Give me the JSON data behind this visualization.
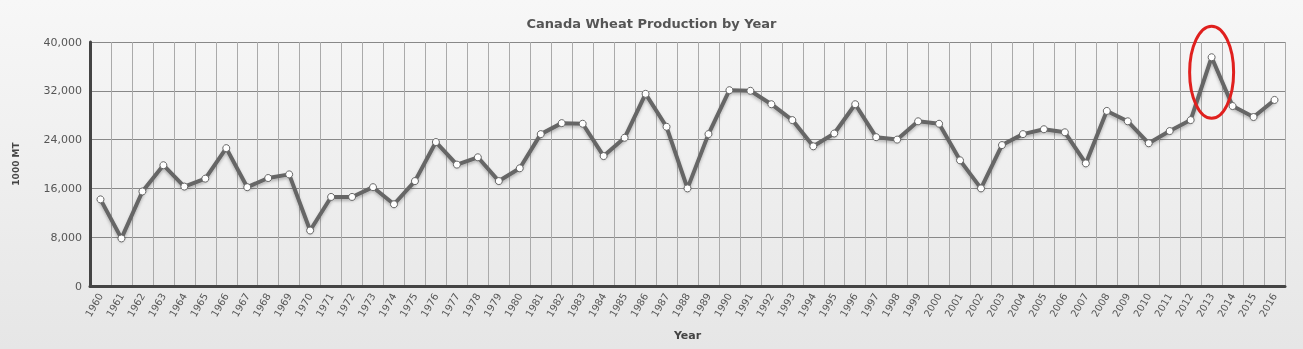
{
  "chart_data": {
    "type": "line",
    "title": "Canada Wheat Production by Year",
    "xlabel": "Year",
    "ylabel": "1000 MT",
    "categories": [
      "1960",
      "1961",
      "1962",
      "1963",
      "1964",
      "1965",
      "1966",
      "1967",
      "1968",
      "1969",
      "1970",
      "1971",
      "1972",
      "1973",
      "1974",
      "1975",
      "1976",
      "1977",
      "1978",
      "1979",
      "1980",
      "1981",
      "1982",
      "1983",
      "1984",
      "1985",
      "1986",
      "1987",
      "1988",
      "1989",
      "1990",
      "1991",
      "1992",
      "1993",
      "1994",
      "1995",
      "1996",
      "1997",
      "1998",
      "1999",
      "2000",
      "2001",
      "2002",
      "2003",
      "2004",
      "2005",
      "2006",
      "2007",
      "2008",
      "2009",
      "2010",
      "2011",
      "2012",
      "2013",
      "2014",
      "2015",
      "2016"
    ],
    "series": [
      {
        "color": "#666666",
        "values": [
          14200,
          7800,
          15500,
          19800,
          16300,
          17600,
          22600,
          16200,
          17700,
          18300,
          9100,
          14600,
          14600,
          16200,
          13400,
          17200,
          23600,
          19900,
          21100,
          17200,
          19300,
          24900,
          26700,
          26600,
          21300,
          24300,
          31500,
          26100,
          16000,
          24900,
          32100,
          32000,
          29800,
          27200,
          22900,
          25000,
          29800,
          24400,
          24000,
          27000,
          26600,
          20600,
          16000,
          23100,
          24900,
          25700,
          25200,
          20100,
          28700,
          27000,
          23400,
          25400,
          27200,
          37500,
          29500,
          27700,
          30500
        ]
      }
    ],
    "ylim": [
      0,
      40000
    ],
    "yticks": [
      {
        "value": 0,
        "label": "0"
      },
      {
        "value": 8000,
        "label": "8,000"
      },
      {
        "value": 16000,
        "label": "16,000"
      },
      {
        "value": 24000,
        "label": "24,000"
      },
      {
        "value": 32000,
        "label": "32,000"
      },
      {
        "value": 40000,
        "label": "40,000"
      }
    ],
    "grid": true,
    "marker": "circle",
    "line_style": "solid"
  }
}
